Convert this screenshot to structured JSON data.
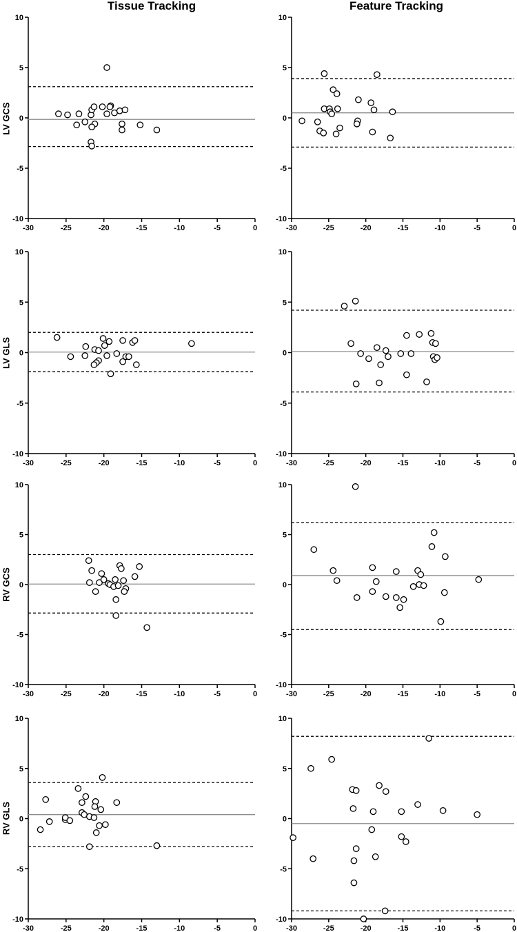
{
  "column_titles": [
    "Tissue Tracking",
    "Feature Tracking"
  ],
  "row_labels": [
    "LV GCS",
    "LV GLS",
    "RV GCS",
    "RV GLS"
  ],
  "colors": {
    "axis": "#000000",
    "mean_line": "#8c8c8c",
    "limit_line": "#000000",
    "marker_edge": "#000000",
    "marker_fill": "#ffffff"
  },
  "chart_data": [
    {
      "type": "scatter",
      "id": "tt-lv-gcs",
      "column": "Tissue Tracking",
      "row": "LV GCS",
      "xlim": [
        -30,
        0
      ],
      "ylim": [
        -10,
        10
      ],
      "xticks": [
        -30,
        -25,
        -20,
        -15,
        -10,
        -5,
        0
      ],
      "yticks": [
        -10,
        -5,
        0,
        5,
        10
      ],
      "mean": -0.15,
      "upper_limit": 3.1,
      "lower_limit": -2.85,
      "points": [
        [
          -19.6,
          5.0
        ],
        [
          -26.0,
          0.4
        ],
        [
          -24.8,
          0.3
        ],
        [
          -23.3,
          0.4
        ],
        [
          -23.6,
          -0.7
        ],
        [
          -22.5,
          -0.4
        ],
        [
          -21.7,
          0.3
        ],
        [
          -21.6,
          0.8
        ],
        [
          -21.3,
          1.1
        ],
        [
          -20.2,
          1.1
        ],
        [
          -19.1,
          1.2
        ],
        [
          -19.2,
          1.1
        ],
        [
          -19.6,
          0.4
        ],
        [
          -18.6,
          0.5
        ],
        [
          -17.9,
          0.7
        ],
        [
          -17.2,
          0.8
        ],
        [
          -21.2,
          -0.6
        ],
        [
          -21.6,
          -0.9
        ],
        [
          -21.7,
          -2.4
        ],
        [
          -21.6,
          -2.8
        ],
        [
          -17.6,
          -0.6
        ],
        [
          -17.6,
          -1.2
        ],
        [
          -15.2,
          -0.7
        ],
        [
          -13.0,
          -1.2
        ]
      ]
    },
    {
      "type": "scatter",
      "id": "ft-lv-gcs",
      "column": "Feature Tracking",
      "row": "LV GCS",
      "xlim": [
        -30,
        0
      ],
      "ylim": [
        -10,
        10
      ],
      "xticks": [
        -30,
        -25,
        -20,
        -15,
        -10,
        -5,
        0
      ],
      "yticks": [
        -10,
        -5,
        0,
        5,
        10
      ],
      "mean": 0.5,
      "upper_limit": 3.9,
      "lower_limit": -2.9,
      "points": [
        [
          -25.6,
          4.4
        ],
        [
          -18.5,
          4.3
        ],
        [
          -24.4,
          2.8
        ],
        [
          -23.9,
          2.4
        ],
        [
          -21.0,
          1.8
        ],
        [
          -19.3,
          1.5
        ],
        [
          -25.6,
          0.9
        ],
        [
          -24.9,
          0.9
        ],
        [
          -23.8,
          0.9
        ],
        [
          -24.8,
          0.6
        ],
        [
          -24.6,
          0.4
        ],
        [
          -18.9,
          0.8
        ],
        [
          -16.4,
          0.6
        ],
        [
          -28.6,
          -0.3
        ],
        [
          -26.5,
          -0.4
        ],
        [
          -21.1,
          -0.3
        ],
        [
          -21.2,
          -0.6
        ],
        [
          -23.5,
          -1.0
        ],
        [
          -26.2,
          -1.3
        ],
        [
          -25.7,
          -1.5
        ],
        [
          -24.0,
          -1.6
        ],
        [
          -19.1,
          -1.4
        ],
        [
          -16.7,
          -2.0
        ]
      ]
    },
    {
      "type": "scatter",
      "id": "tt-lv-gls",
      "column": "Tissue Tracking",
      "row": "LV GLS",
      "xlim": [
        -30,
        0
      ],
      "ylim": [
        -10,
        10
      ],
      "xticks": [
        -30,
        -25,
        -20,
        -15,
        -10,
        -5,
        0
      ],
      "yticks": [
        -10,
        -5,
        0,
        5,
        10
      ],
      "mean": 0.05,
      "upper_limit": 2.0,
      "lower_limit": -1.9,
      "points": [
        [
          -26.2,
          1.5
        ],
        [
          -24.4,
          -0.4
        ],
        [
          -22.4,
          0.6
        ],
        [
          -22.5,
          -0.3
        ],
        [
          -21.2,
          0.3
        ],
        [
          -20.7,
          0.2
        ],
        [
          -20.1,
          1.4
        ],
        [
          -19.9,
          0.7
        ],
        [
          -19.3,
          1.1
        ],
        [
          -17.5,
          1.2
        ],
        [
          -16.2,
          1.0
        ],
        [
          -15.9,
          1.2
        ],
        [
          -20.7,
          -0.8
        ],
        [
          -21.0,
          -1.0
        ],
        [
          -21.3,
          -1.2
        ],
        [
          -19.6,
          -0.3
        ],
        [
          -18.3,
          -0.1
        ],
        [
          -17.1,
          -0.4
        ],
        [
          -16.7,
          -0.4
        ],
        [
          -17.5,
          -0.9
        ],
        [
          -15.7,
          -1.2
        ],
        [
          -19.1,
          -2.1
        ],
        [
          -8.4,
          0.9
        ]
      ]
    },
    {
      "type": "scatter",
      "id": "ft-lv-gls",
      "column": "Feature Tracking",
      "row": "LV GLS",
      "xlim": [
        -30,
        0
      ],
      "ylim": [
        -10,
        10
      ],
      "xticks": [
        -30,
        -25,
        -20,
        -15,
        -10,
        -5,
        0
      ],
      "yticks": [
        -10,
        -5,
        0,
        5,
        10
      ],
      "mean": 0.1,
      "upper_limit": 4.2,
      "lower_limit": -3.9,
      "points": [
        [
          -22.9,
          4.6
        ],
        [
          -21.4,
          5.1
        ],
        [
          -22.0,
          0.9
        ],
        [
          -20.7,
          -0.1
        ],
        [
          -19.6,
          -0.6
        ],
        [
          -18.5,
          0.5
        ],
        [
          -17.3,
          0.2
        ],
        [
          -18.0,
          -1.2
        ],
        [
          -17.0,
          -0.4
        ],
        [
          -15.3,
          -0.1
        ],
        [
          -13.9,
          -0.1
        ],
        [
          -14.5,
          1.7
        ],
        [
          -12.8,
          1.8
        ],
        [
          -11.2,
          1.9
        ],
        [
          -11.0,
          1.0
        ],
        [
          -10.6,
          0.9
        ],
        [
          -10.9,
          -0.4
        ],
        [
          -10.7,
          -0.7
        ],
        [
          -10.4,
          -0.5
        ],
        [
          -14.5,
          -2.2
        ],
        [
          -11.8,
          -2.9
        ],
        [
          -21.3,
          -3.1
        ],
        [
          -18.2,
          -3.0
        ]
      ]
    },
    {
      "type": "scatter",
      "id": "tt-rv-gcs",
      "column": "Tissue Tracking",
      "row": "RV GCS",
      "xlim": [
        -30,
        0
      ],
      "ylim": [
        -10,
        10
      ],
      "xticks": [
        -30,
        -25,
        -20,
        -15,
        -10,
        -5,
        0
      ],
      "yticks": [
        -10,
        -5,
        0,
        5,
        10
      ],
      "mean": 0.05,
      "upper_limit": 3.0,
      "lower_limit": -2.85,
      "points": [
        [
          -22.0,
          2.4
        ],
        [
          -21.6,
          1.4
        ],
        [
          -20.3,
          1.1
        ],
        [
          -18.5,
          0.5
        ],
        [
          -17.9,
          1.9
        ],
        [
          -17.7,
          1.6
        ],
        [
          -15.3,
          1.8
        ],
        [
          -15.9,
          0.8
        ],
        [
          -21.9,
          0.2
        ],
        [
          -20.6,
          0.2
        ],
        [
          -20.0,
          0.5
        ],
        [
          -19.4,
          0.1
        ],
        [
          -19.2,
          0.0
        ],
        [
          -18.7,
          -0.2
        ],
        [
          -18.1,
          -0.1
        ],
        [
          -17.4,
          0.4
        ],
        [
          -17.1,
          -0.4
        ],
        [
          -17.3,
          -0.7
        ],
        [
          -21.1,
          -0.7
        ],
        [
          -18.4,
          -1.5
        ],
        [
          -18.4,
          -3.1
        ],
        [
          -14.3,
          -4.3
        ]
      ]
    },
    {
      "type": "scatter",
      "id": "ft-rv-gcs",
      "column": "Feature Tracking",
      "row": "RV GCS",
      "xlim": [
        -30,
        0
      ],
      "ylim": [
        -10,
        10
      ],
      "xticks": [
        -30,
        -25,
        -20,
        -15,
        -10,
        -5,
        0
      ],
      "yticks": [
        -10,
        -5,
        0,
        5,
        10
      ],
      "mean": 0.9,
      "upper_limit": 6.2,
      "lower_limit": -4.5,
      "points": [
        [
          -21.4,
          9.8
        ],
        [
          -27.0,
          3.5
        ],
        [
          -24.4,
          1.4
        ],
        [
          -23.9,
          0.4
        ],
        [
          -19.1,
          1.7
        ],
        [
          -15.9,
          1.3
        ],
        [
          -18.6,
          0.3
        ],
        [
          -19.1,
          -0.7
        ],
        [
          -21.2,
          -1.3
        ],
        [
          -17.3,
          -1.2
        ],
        [
          -15.9,
          -1.3
        ],
        [
          -14.9,
          -1.5
        ],
        [
          -15.4,
          -2.3
        ],
        [
          -13.0,
          1.4
        ],
        [
          -12.6,
          1.0
        ],
        [
          -12.8,
          0.0
        ],
        [
          -12.2,
          -0.1
        ],
        [
          -11.1,
          3.8
        ],
        [
          -10.8,
          5.2
        ],
        [
          -9.3,
          2.8
        ],
        [
          -9.4,
          -0.8
        ],
        [
          -9.9,
          -3.7
        ],
        [
          -4.8,
          0.5
        ],
        [
          -13.6,
          -0.2
        ]
      ]
    },
    {
      "type": "scatter",
      "id": "tt-rv-gls",
      "column": "Tissue Tracking",
      "row": "RV GLS",
      "xlim": [
        -30,
        0
      ],
      "ylim": [
        -10,
        10
      ],
      "xticks": [
        -30,
        -25,
        -20,
        -15,
        -10,
        -5,
        0
      ],
      "yticks": [
        -10,
        -5,
        0,
        5,
        10
      ],
      "mean": 0.4,
      "upper_limit": 3.6,
      "lower_limit": -2.8,
      "points": [
        [
          -20.2,
          4.1
        ],
        [
          -23.4,
          3.0
        ],
        [
          -22.4,
          2.2
        ],
        [
          -22.9,
          1.6
        ],
        [
          -27.7,
          1.9
        ],
        [
          -21.1,
          1.7
        ],
        [
          -18.3,
          1.6
        ],
        [
          -21.2,
          1.2
        ],
        [
          -20.4,
          0.9
        ],
        [
          -22.9,
          0.6
        ],
        [
          -22.6,
          0.4
        ],
        [
          -21.9,
          0.2
        ],
        [
          -21.3,
          0.1
        ],
        [
          -25.1,
          -0.1
        ],
        [
          -25.1,
          0.1
        ],
        [
          -24.5,
          -0.2
        ],
        [
          -27.2,
          -0.3
        ],
        [
          -20.6,
          -0.7
        ],
        [
          -19.8,
          -0.6
        ],
        [
          -28.4,
          -1.1
        ],
        [
          -21.0,
          -1.4
        ],
        [
          -21.9,
          -2.8
        ],
        [
          -13.0,
          -2.7
        ]
      ]
    },
    {
      "type": "scatter",
      "id": "ft-rv-gls",
      "column": "Feature Tracking",
      "row": "RV GLS",
      "xlim": [
        -30,
        0
      ],
      "ylim": [
        -10,
        10
      ],
      "xticks": [
        -30,
        -25,
        -20,
        -15,
        -10,
        -5,
        0
      ],
      "yticks": [
        -10,
        -5,
        0,
        5,
        10
      ],
      "mean": -0.5,
      "upper_limit": 8.2,
      "lower_limit": -9.2,
      "points": [
        [
          -11.5,
          8.0
        ],
        [
          -24.6,
          5.9
        ],
        [
          -27.4,
          5.0
        ],
        [
          -18.2,
          3.3
        ],
        [
          -21.8,
          2.9
        ],
        [
          -21.3,
          2.8
        ],
        [
          -17.3,
          2.7
        ],
        [
          -21.7,
          1.0
        ],
        [
          -13.0,
          1.4
        ],
        [
          -19.0,
          0.7
        ],
        [
          -15.2,
          0.7
        ],
        [
          -9.6,
          0.8
        ],
        [
          -5.0,
          0.4
        ],
        [
          -19.2,
          -1.1
        ],
        [
          -15.2,
          -1.8
        ],
        [
          -14.6,
          -2.3
        ],
        [
          -29.8,
          -1.9
        ],
        [
          -21.3,
          -3.0
        ],
        [
          -27.1,
          -4.0
        ],
        [
          -18.7,
          -3.8
        ],
        [
          -21.6,
          -4.2
        ],
        [
          -21.6,
          -6.4
        ],
        [
          -20.3,
          -10.0
        ],
        [
          -17.4,
          -9.2
        ]
      ]
    }
  ]
}
